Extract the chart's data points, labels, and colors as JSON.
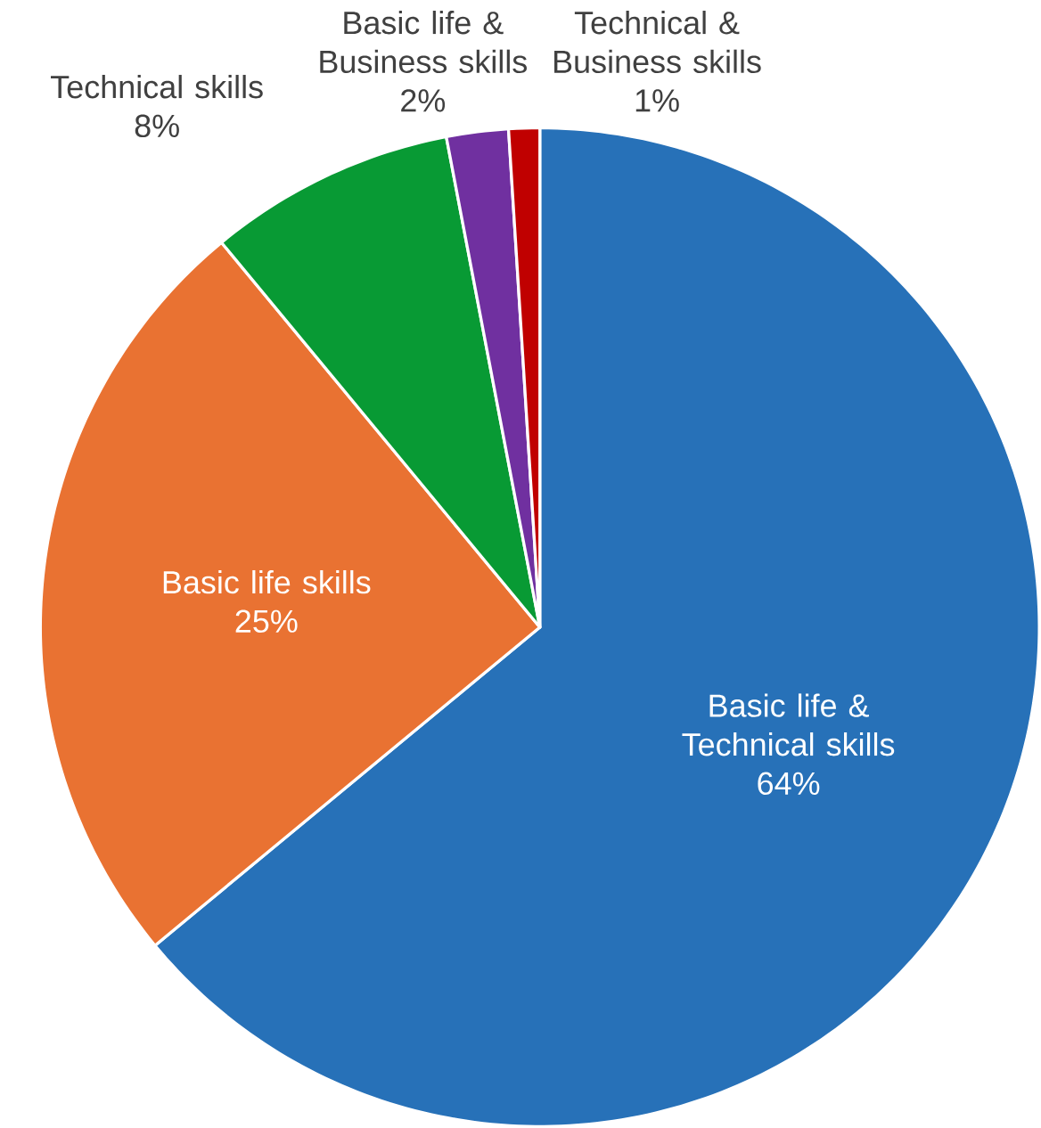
{
  "chart_data": {
    "type": "pie",
    "categories": [
      "Basic life & Technical skills",
      "Basic life skills",
      "Technical skills",
      "Basic life & Business skills",
      "Technical & Business skills"
    ],
    "values": [
      64,
      25,
      8,
      2,
      1
    ],
    "value_labels": [
      "64%",
      "25%",
      "8%",
      "2%",
      "1%"
    ],
    "colors": [
      "#2771b8",
      "#e97232",
      "#089a34",
      "#7030a0",
      "#c00000"
    ]
  }
}
